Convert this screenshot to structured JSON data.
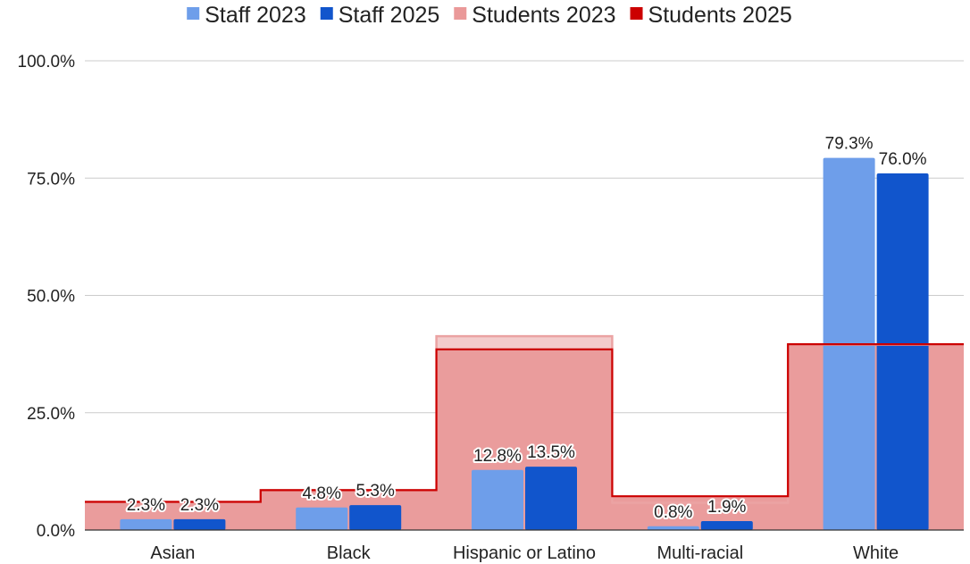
{
  "chart_data": {
    "type": "bar",
    "title": "",
    "xlabel": "",
    "ylabel": "",
    "ylim": [
      0,
      100
    ],
    "y_ticks": [
      "0.0%",
      "25.0%",
      "50.0%",
      "75.0%",
      "100.0%"
    ],
    "y_tick_values": [
      0,
      25,
      50,
      75,
      100
    ],
    "grid": true,
    "legend_position": "top",
    "categories": [
      "Asian",
      "Black",
      "Hispanic or Latino",
      "Multi-racial",
      "White"
    ],
    "series": [
      {
        "name": "Staff 2023",
        "render": "bar",
        "color": "#6e9eea",
        "values": [
          2.3,
          4.8,
          12.8,
          0.8,
          79.3
        ],
        "labels": [
          "2.3%",
          "4.8%",
          "12.8%",
          "0.8%",
          "79.3%"
        ]
      },
      {
        "name": "Staff 2025",
        "render": "bar",
        "color": "#1155cc",
        "values": [
          2.3,
          5.3,
          13.5,
          1.9,
          76.0
        ],
        "labels": [
          "2.3%",
          "5.3%",
          "13.5%",
          "1.9%",
          "76.0%"
        ]
      },
      {
        "name": "Students 2023",
        "render": "stepped-area",
        "color": "#ea9999",
        "values": [
          6,
          8.5,
          41.3,
          5.8,
          39.5
        ]
      },
      {
        "name": "Students 2025",
        "render": "stepped-area",
        "color": "#cc0000",
        "values": [
          6,
          8.5,
          38.5,
          7.2,
          39.6
        ]
      }
    ]
  }
}
